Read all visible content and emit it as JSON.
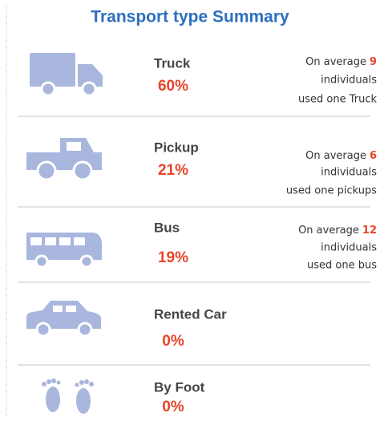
{
  "title": "Transport type Summary",
  "items": [
    {
      "name": "Truck",
      "percent": "60%",
      "note": {
        "prefix": "On average",
        "number": "9",
        "line2": "individuals",
        "line3": "used one Truck"
      }
    },
    {
      "name": "Pickup",
      "percent": "21%",
      "note": {
        "prefix": "On average",
        "number": "6",
        "line2": "individuals",
        "line3": "used one pickups"
      }
    },
    {
      "name": "Bus",
      "percent": "19%",
      "note": {
        "prefix": "On average",
        "number": "12",
        "line2": "individuals",
        "line3": "used one bus"
      }
    },
    {
      "name": "Rented Car",
      "percent": "0%"
    },
    {
      "name": "By Foot",
      "percent": "0%"
    }
  ]
}
